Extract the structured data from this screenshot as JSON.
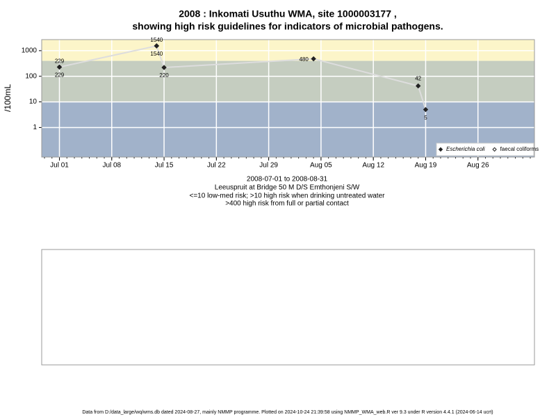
{
  "chart_data": {
    "type": "line",
    "title": "2008 : Inkomati Usuthu WMA, site 1000003177 ,",
    "subtitle": "showing high risk guidelines for indicators of microbial pathogens.",
    "y_label": "/100mL",
    "notes": [
      "2008-07-01 to 2008-08-31",
      "Leeuspruit at Bridge 50 M D/S Emthonjeni S/W",
      "<=10 low-med risk; >10 high risk when drinking untreated water",
      ">400 high risk from full or partial contact"
    ],
    "footer": "Data from D:/data_large/wq/wms.db dated 2024-08-27, mainly NMMP programme. Plotted on 2024-10-24 21:39:58 using NMMP_WMA_web.R ver 9.3 under R version 4.4.1 (2024-06-14 ucrt)",
    "x": [
      "2008-07-01",
      "2008-07-14",
      "2008-07-15",
      "2008-08-04",
      "2008-08-18",
      "2008-08-19"
    ],
    "series": [
      {
        "name": "Escherichia coli",
        "color": "#222222",
        "line_color": "#dddddd",
        "marker": "filled-diamond",
        "values": [
          229,
          1540,
          220,
          480,
          42,
          5
        ]
      },
      {
        "name": "faecal coliforms",
        "color": "#222222",
        "marker": "open-diamond",
        "values": [
          229,
          1540,
          null,
          null,
          null,
          null
        ]
      }
    ],
    "xlim": [
      "2008-06-29",
      "2008-09-02"
    ],
    "xticks": [
      {
        "value": "2008-07-01",
        "label": "Jul 01"
      },
      {
        "value": "2008-07-08",
        "label": "Jul 08"
      },
      {
        "value": "2008-07-15",
        "label": "Jul 15"
      },
      {
        "value": "2008-07-22",
        "label": "Jul 22"
      },
      {
        "value": "2008-07-29",
        "label": "Jul 29"
      },
      {
        "value": "2008-08-05",
        "label": "Aug 05"
      },
      {
        "value": "2008-08-12",
        "label": "Aug 12"
      },
      {
        "value": "2008-08-19",
        "label": "Aug 19"
      },
      {
        "value": "2008-08-26",
        "label": "Aug 26"
      }
    ],
    "ylim": [
      0.07,
      2700
    ],
    "yticks": [
      1,
      10,
      100,
      1000
    ],
    "log_y": true,
    "grid": true,
    "legend_position": "bottom-right",
    "bands": [
      {
        "to": 10,
        "color": "#a1b2ca"
      },
      {
        "from": 10,
        "to": 400,
        "color": "#c5cdc0"
      },
      {
        "from": 400,
        "color": "#fcf5c9"
      }
    ]
  }
}
